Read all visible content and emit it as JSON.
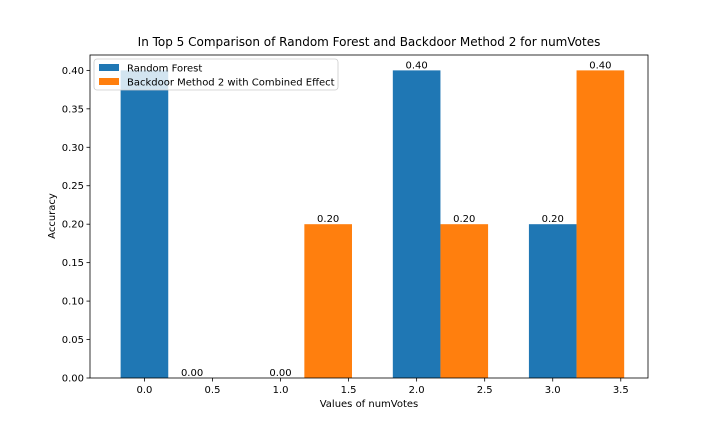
{
  "chart_data": {
    "type": "bar",
    "title": "In Top 5 Comparison of Random Forest and Backdoor Method 2 for numVotes",
    "xlabel": "Values of numVotes",
    "ylabel": "Accuracy",
    "xlim": [
      -0.4,
      3.7
    ],
    "ylim": [
      0,
      0.42
    ],
    "xticks": [
      0.0,
      0.5,
      1.0,
      1.5,
      2.0,
      2.5,
      3.0,
      3.5
    ],
    "yticks": [
      0.0,
      0.05,
      0.1,
      0.15,
      0.2,
      0.25,
      0.3,
      0.35,
      0.4
    ],
    "xtick_labels": [
      "0.0",
      "0.5",
      "1.0",
      "1.5",
      "2.0",
      "2.5",
      "3.0",
      "3.5"
    ],
    "ytick_labels": [
      "0.00",
      "0.05",
      "0.10",
      "0.15",
      "0.20",
      "0.25",
      "0.30",
      "0.35",
      "0.40"
    ],
    "bar_width": 0.35,
    "legend_position": "upper-left",
    "grid": false,
    "series": [
      {
        "name": "Random Forest",
        "color": "#1f77b4",
        "x": [
          0,
          1,
          2,
          3
        ],
        "values": [
          0.4,
          0.0,
          0.4,
          0.2
        ],
        "labels": [
          "",
          "0.00",
          "0.40",
          "0.20"
        ]
      },
      {
        "name": "Backdoor Method 2 with Combined Effect",
        "color": "#ff7f0e",
        "x": [
          0,
          1,
          2,
          3
        ],
        "values": [
          0.0,
          0.2,
          0.2,
          0.4
        ],
        "labels": [
          "0.00",
          "0.20",
          "0.20",
          "0.40"
        ]
      }
    ]
  }
}
